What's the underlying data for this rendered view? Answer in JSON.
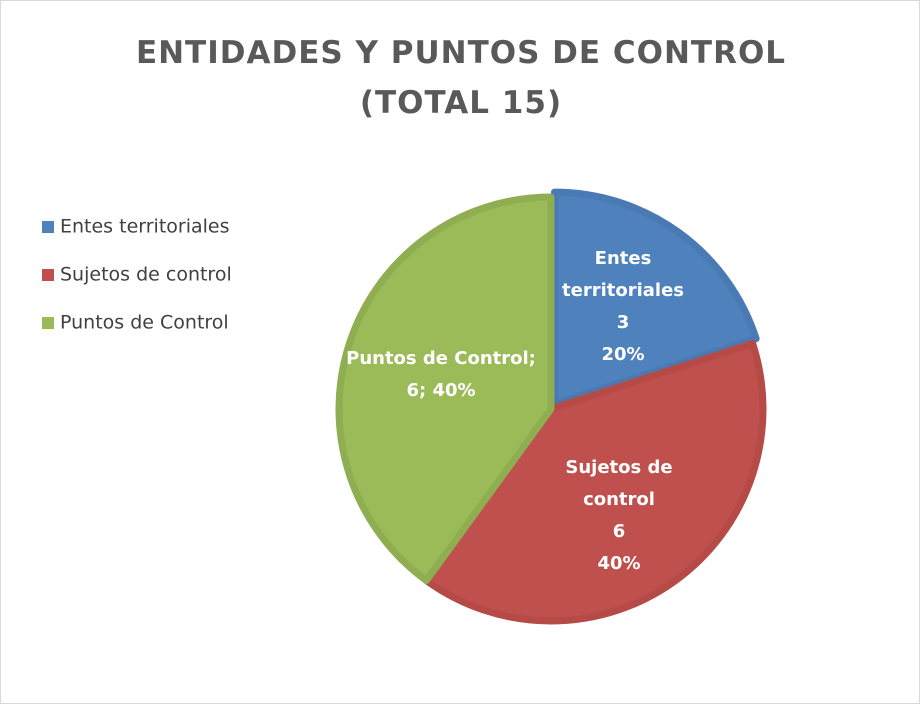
{
  "chart_data": {
    "type": "pie",
    "title": [
      "ENTIDADES Y PUNTOS DE CONTROL",
      "(TOTAL 15)"
    ],
    "categories": [
      "Entes territoriales",
      "Sujetos de control",
      "Puntos de Control"
    ],
    "values": [
      3,
      6,
      6
    ],
    "percentages": [
      20,
      40,
      40
    ],
    "percentage_labels": [
      "20%",
      "40%",
      "40%"
    ],
    "label_separator": "; ",
    "colors": [
      "#4f81bd",
      "#c0504d",
      "#9bbb59"
    ],
    "border_colors": [
      "#4a7ab3",
      "#b54a47",
      "#8fae51"
    ],
    "legend": "left"
  }
}
